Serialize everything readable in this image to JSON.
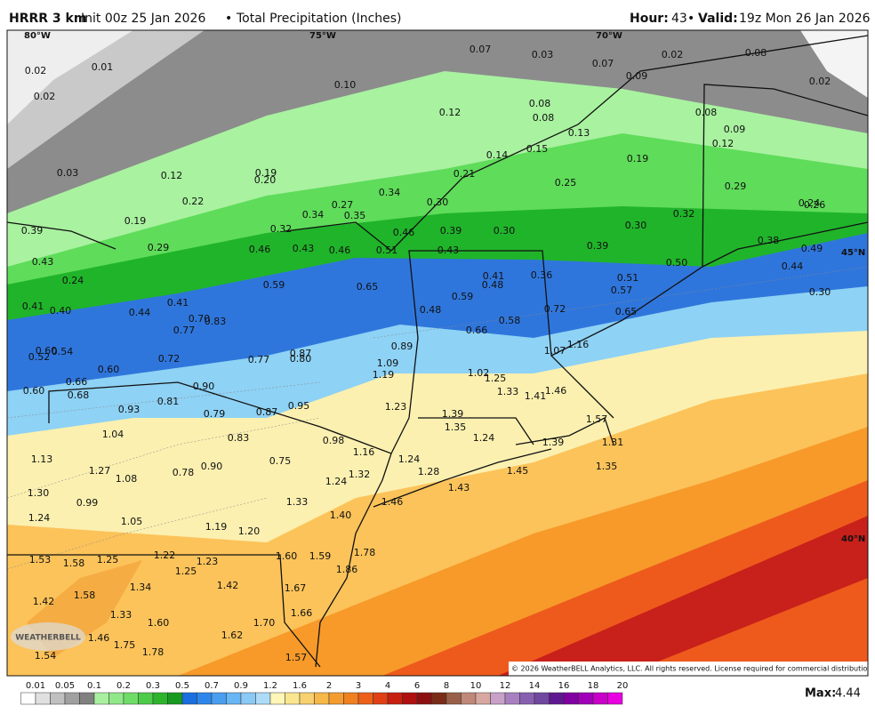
{
  "header": {
    "model": "HRRR 3 km",
    "init": "Init 00z 25 Jan 2026",
    "separator": "•",
    "field": "Total Precipitation (Inches)",
    "hour_label": "Hour:",
    "hour": "43",
    "valid_label": "Valid:",
    "valid": "19z Mon 26 Jan 2026"
  },
  "grid_labels": [
    "80°W",
    "75°W",
    "70°W",
    "45°N",
    "40°N"
  ],
  "logo": "WEATHERBELL",
  "copyright": "© 2026 WeatherBELL Analytics, LLC. All rights reserved. License required for commercial distribution.",
  "colorbar_labels": [
    "0.01",
    "0.05",
    "0.1",
    "0.2",
    "0.3",
    "0.5",
    "0.7",
    "0.9",
    "1.2",
    "1.6",
    "2",
    "3",
    "4",
    "6",
    "8",
    "10",
    "12",
    "14",
    "16",
    "18",
    "20"
  ],
  "max_label": "Max:",
  "max_value": "4.44",
  "map_labels": [
    "0.02",
    "0.01",
    "0.02",
    "0.07",
    "0.03",
    "0.07",
    "0.09",
    "0.02",
    "0.08",
    "0.02",
    "0.10",
    "0.12",
    "0.08",
    "0.08",
    "0.13",
    "0.08",
    "0.09",
    "0.12",
    "0.03",
    "0.12",
    "0.19",
    "0.20",
    "0.14",
    "0.15",
    "0.21",
    "0.19",
    "0.25",
    "0.29",
    "0.22",
    "0.34",
    "0.27",
    "0.30",
    "0.34",
    "0.35",
    "0.32",
    "0.24",
    "0.26",
    "0.19",
    "0.32",
    "0.46",
    "0.39",
    "0.30",
    "0.30",
    "0.39",
    "0.29",
    "0.46",
    "0.43",
    "0.46",
    "0.51",
    "0.43",
    "0.39",
    "0.38",
    "0.49",
    "0.43",
    "0.24",
    "0.50",
    "0.44",
    "0.59",
    "0.65",
    "0.41",
    "0.48",
    "0.36",
    "0.51",
    "0.57",
    "0.30",
    "0.41",
    "0.40",
    "0.44",
    "0.41",
    "0.59",
    "0.48",
    "0.72",
    "0.65",
    "0.70",
    "0.83",
    "0.58",
    "0.77",
    "0.66",
    "1.16",
    "0.60",
    "0.52",
    "0.54",
    "0.89",
    "1.07",
    "0.87",
    "0.80",
    "0.72",
    "0.77",
    "1.09",
    "0.60",
    "1.19",
    "1.02",
    "1.25",
    "0.66",
    "0.90",
    "1.46",
    "0.60",
    "0.68",
    "1.33",
    "1.41",
    "0.81",
    "1.23",
    "0.93",
    "0.79",
    "0.87",
    "0.95",
    "1.39",
    "1.57",
    "1.35",
    "1.04",
    "0.83",
    "0.98",
    "1.24",
    "1.39",
    "1.31",
    "1.16",
    "1.13",
    "0.75",
    "1.24",
    "1.35",
    "1.27",
    "0.90",
    "0.78",
    "1.32",
    "1.28",
    "1.45",
    "1.08",
    "1.24",
    "1.43",
    "1.30",
    "0.99",
    "1.33",
    "1.46",
    "1.40",
    "1.24",
    "1.05",
    "1.19",
    "1.20",
    "1.78",
    "1.53",
    "1.58",
    "1.25",
    "1.22",
    "1.23",
    "1.60",
    "1.59",
    "1.25",
    "1.86",
    "1.58",
    "1.34",
    "1.42",
    "1.67",
    "1.42",
    "1.33",
    "1.60",
    "1.70",
    "1.66",
    "1.62",
    "1.46",
    "1.75",
    "1.78",
    "1.54",
    "1.57"
  ]
}
